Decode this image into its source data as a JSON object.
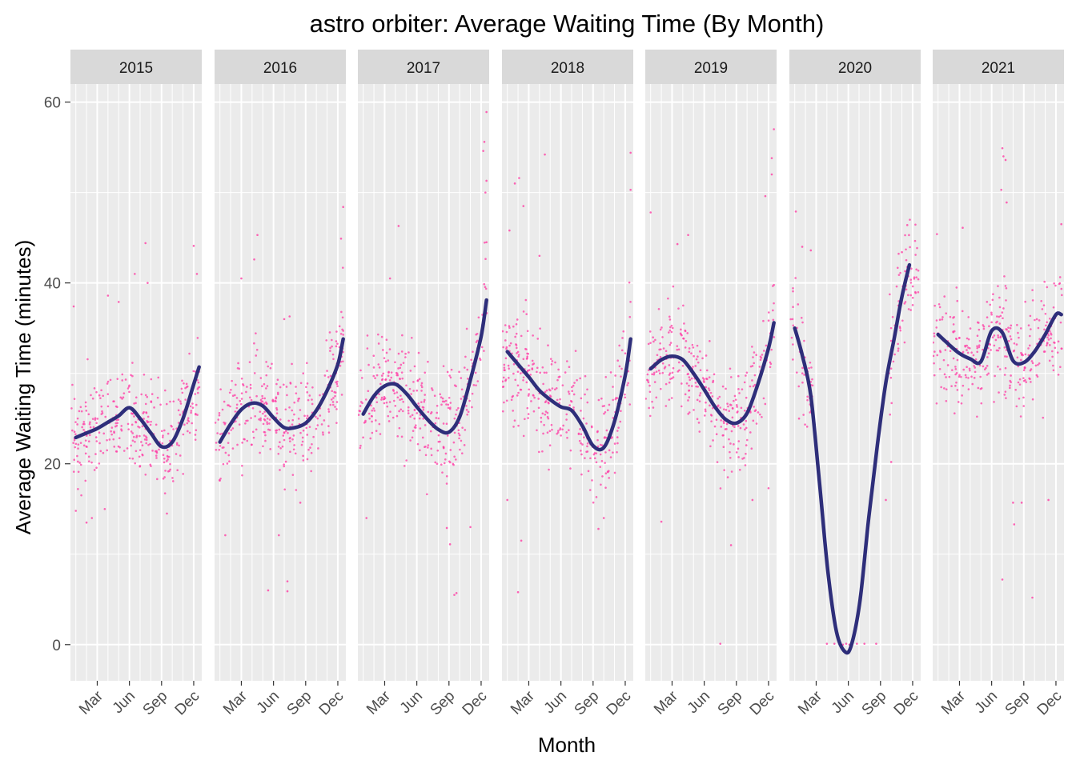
{
  "chart_data": {
    "type": "scatter",
    "title": "astro orbiter: Average Waiting Time (By Month)",
    "xlabel": "Month",
    "ylabel": "Average Waiting Time (minutes)",
    "ylim": [
      -4,
      62
    ],
    "yticks": [
      0,
      20,
      40,
      60
    ],
    "xlim": [
      0,
      12.25
    ],
    "xticks": [
      {
        "label": "Mar",
        "value": 2.5
      },
      {
        "label": "Jun",
        "value": 5.5
      },
      {
        "label": "Sep",
        "value": 8.5
      },
      {
        "label": "Dec",
        "value": 11.5
      }
    ],
    "colors": {
      "points": "#ff3ea5",
      "smooth": "#2e2e7a",
      "panel_bg": "#ebebeb",
      "strip_bg": "#d9d9d9",
      "grid": "#ffffff"
    },
    "grid": true,
    "facets": [
      {
        "label": "2015",
        "smooth": [
          [
            0.5,
            22.9
          ],
          [
            1.5,
            23.4
          ],
          [
            2.5,
            23.9
          ],
          [
            3.5,
            24.6
          ],
          [
            4.5,
            25.3
          ],
          [
            5.5,
            26.2
          ],
          [
            6.5,
            25.0
          ],
          [
            7.5,
            23.4
          ],
          [
            8.5,
            21.9
          ],
          [
            9.5,
            22.4
          ],
          [
            10.5,
            25.0
          ],
          [
            11.5,
            28.8
          ],
          [
            12.0,
            30.7
          ]
        ],
        "points": {
          "seed": 15,
          "spread": 4.2,
          "high": [
            [
              11.5,
              44.1
            ],
            [
              11.8,
              41.0
            ],
            [
              7.0,
              44.4
            ],
            [
              6.0,
              41.0
            ],
            [
              4.5,
              37.9
            ],
            [
              3.5,
              38.6
            ],
            [
              7.2,
              40.0
            ],
            [
              0.3,
              37.4
            ]
          ],
          "low": [
            [
              1.5,
              13.5
            ],
            [
              2.0,
              14.0
            ],
            [
              0.5,
              14.8
            ],
            [
              3.2,
              15.0
            ],
            [
              9.0,
              14.5
            ]
          ]
        }
      },
      {
        "label": "2016",
        "smooth": [
          [
            0.5,
            22.4
          ],
          [
            1.5,
            24.4
          ],
          [
            2.5,
            26.0
          ],
          [
            3.5,
            26.7
          ],
          [
            4.5,
            26.4
          ],
          [
            5.5,
            25.1
          ],
          [
            6.5,
            24.0
          ],
          [
            7.5,
            24.0
          ],
          [
            8.5,
            24.5
          ],
          [
            9.5,
            25.9
          ],
          [
            10.5,
            28.1
          ],
          [
            11.5,
            31.0
          ],
          [
            12.0,
            33.8
          ]
        ],
        "points": {
          "seed": 16,
          "spread": 4.2,
          "high": [
            [
              4.0,
              45.3
            ],
            [
              3.7,
              42.6
            ],
            [
              12.0,
              48.4
            ],
            [
              11.8,
              44.9
            ],
            [
              2.5,
              40.5
            ],
            [
              6.5,
              36.0
            ],
            [
              7.0,
              36.3
            ]
          ],
          "low": [
            [
              1.0,
              12.1
            ],
            [
              5.0,
              6.0
            ],
            [
              6.8,
              5.9
            ],
            [
              6.8,
              7.0
            ],
            [
              6.0,
              12.1
            ],
            [
              8.0,
              15.7
            ]
          ]
        }
      },
      {
        "label": "2017",
        "smooth": [
          [
            0.5,
            25.5
          ],
          [
            1.5,
            27.5
          ],
          [
            2.5,
            28.6
          ],
          [
            3.5,
            28.8
          ],
          [
            4.5,
            27.8
          ],
          [
            5.5,
            26.3
          ],
          [
            6.5,
            24.9
          ],
          [
            7.5,
            23.8
          ],
          [
            8.5,
            23.5
          ],
          [
            9.5,
            25.2
          ],
          [
            10.5,
            29.3
          ],
          [
            11.5,
            34.1
          ],
          [
            12.0,
            38.1
          ]
        ],
        "points": {
          "seed": 17,
          "spread": 4.4,
          "high": [
            [
              12.0,
              58.9
            ],
            [
              11.8,
              55.6
            ],
            [
              11.7,
              54.6
            ],
            [
              12.0,
              51.3
            ],
            [
              11.9,
              50.0
            ],
            [
              3.8,
              46.3
            ],
            [
              12.0,
              44.5
            ],
            [
              3.0,
              40.5
            ]
          ],
          "low": [
            [
              9.2,
              5.7
            ],
            [
              9.0,
              5.5
            ],
            [
              8.6,
              11.1
            ],
            [
              8.3,
              12.9
            ],
            [
              10.5,
              13.0
            ],
            [
              0.8,
              14.0
            ]
          ]
        }
      },
      {
        "label": "2018",
        "smooth": [
          [
            0.5,
            32.4
          ],
          [
            1.5,
            31.0
          ],
          [
            2.5,
            29.6
          ],
          [
            3.5,
            28.1
          ],
          [
            4.5,
            27.1
          ],
          [
            5.5,
            26.3
          ],
          [
            6.5,
            25.9
          ],
          [
            7.5,
            24.2
          ],
          [
            8.5,
            22.0
          ],
          [
            9.5,
            21.8
          ],
          [
            10.5,
            24.7
          ],
          [
            11.5,
            29.8
          ],
          [
            12.0,
            33.8
          ]
        ],
        "points": {
          "seed": 18,
          "spread": 4.4,
          "high": [
            [
              1.6,
              51.6
            ],
            [
              1.2,
              51.0
            ],
            [
              0.7,
              45.8
            ],
            [
              4.0,
              54.2
            ],
            [
              12.0,
              54.4
            ],
            [
              12.0,
              50.3
            ],
            [
              3.5,
              43.0
            ],
            [
              2.0,
              48.5
            ]
          ],
          "low": [
            [
              1.5,
              5.8
            ],
            [
              1.8,
              11.5
            ],
            [
              9.0,
              12.8
            ],
            [
              0.5,
              16.0
            ],
            [
              9.5,
              14.0
            ]
          ]
        }
      },
      {
        "label": "2019",
        "smooth": [
          [
            0.5,
            30.5
          ],
          [
            1.5,
            31.5
          ],
          [
            2.5,
            31.9
          ],
          [
            3.5,
            31.5
          ],
          [
            4.5,
            30.0
          ],
          [
            5.5,
            28.2
          ],
          [
            6.5,
            26.3
          ],
          [
            7.5,
            24.9
          ],
          [
            8.5,
            24.5
          ],
          [
            9.5,
            25.6
          ],
          [
            10.5,
            28.8
          ],
          [
            11.5,
            32.8
          ],
          [
            12.0,
            35.6
          ]
        ],
        "points": {
          "seed": 19,
          "spread": 4.2,
          "high": [
            [
              12.0,
              57.0
            ],
            [
              11.8,
              53.8
            ],
            [
              11.8,
              52.0
            ],
            [
              11.2,
              49.6
            ],
            [
              0.5,
              47.8
            ],
            [
              4.0,
              45.3
            ],
            [
              3.0,
              44.3
            ]
          ],
          "low": [
            [
              7.0,
              0.1
            ],
            [
              8.0,
              11.0
            ],
            [
              1.5,
              13.6
            ],
            [
              10.0,
              16.0
            ],
            [
              11.5,
              17.3
            ]
          ]
        }
      },
      {
        "label": "2020",
        "smooth": [
          [
            0.5,
            35.0
          ],
          [
            1.2,
            32.0
          ],
          [
            2.0,
            27.5
          ],
          [
            2.8,
            18.0
          ],
          [
            3.6,
            8.0
          ],
          [
            4.4,
            1.4
          ],
          [
            5.2,
            -0.8
          ],
          [
            5.8,
            0.0
          ],
          [
            6.6,
            5.0
          ],
          [
            7.4,
            14.0
          ],
          [
            8.2,
            22.0
          ],
          [
            9.0,
            29.0
          ],
          [
            9.8,
            34.0
          ],
          [
            10.5,
            38.5
          ],
          [
            11.2,
            42.0
          ]
        ],
        "points": {
          "seed": 20,
          "spread": 4.0,
          "high": [
            [
              0.6,
              47.9
            ],
            [
              1.2,
              44.0
            ],
            [
              2.0,
              43.6
            ],
            [
              10.5,
              43.4
            ],
            [
              11.0,
              46.4
            ],
            [
              10.8,
              41.3
            ]
          ],
          "low": [
            [
              3.5,
              0.1
            ],
            [
              4.2,
              0.1
            ],
            [
              5.0,
              0.0
            ],
            [
              5.3,
              0.1
            ],
            [
              5.6,
              0.0
            ],
            [
              6.3,
              0.1
            ],
            [
              7.0,
              0.1
            ],
            [
              8.1,
              0.1
            ],
            [
              9.0,
              16.0
            ],
            [
              9.5,
              20.2
            ],
            [
              0.9,
              25.0
            ]
          ]
        }
      },
      {
        "label": "2021",
        "smooth": [
          [
            0.5,
            34.3
          ],
          [
            1.5,
            33.2
          ],
          [
            2.5,
            32.2
          ],
          [
            3.5,
            31.6
          ],
          [
            4.5,
            31.3
          ],
          [
            5.5,
            34.7
          ],
          [
            6.5,
            34.5
          ],
          [
            7.5,
            31.4
          ],
          [
            8.5,
            31.2
          ],
          [
            9.5,
            32.4
          ],
          [
            10.5,
            34.3
          ],
          [
            11.5,
            36.5
          ],
          [
            12.0,
            36.5
          ]
        ],
        "points": {
          "seed": 21,
          "spread": 4.5,
          "high": [
            [
              6.5,
              54.9
            ],
            [
              6.6,
              54.0
            ],
            [
              6.8,
              53.6
            ],
            [
              6.4,
              50.3
            ],
            [
              6.9,
              48.9
            ],
            [
              2.8,
              46.1
            ],
            [
              12.0,
              46.5
            ],
            [
              0.4,
              45.4
            ]
          ],
          "low": [
            [
              9.3,
              5.2
            ],
            [
              6.5,
              7.2
            ],
            [
              7.6,
              13.3
            ],
            [
              8.3,
              15.7
            ],
            [
              7.5,
              15.7
            ],
            [
              10.8,
              16.0
            ]
          ]
        }
      }
    ]
  }
}
